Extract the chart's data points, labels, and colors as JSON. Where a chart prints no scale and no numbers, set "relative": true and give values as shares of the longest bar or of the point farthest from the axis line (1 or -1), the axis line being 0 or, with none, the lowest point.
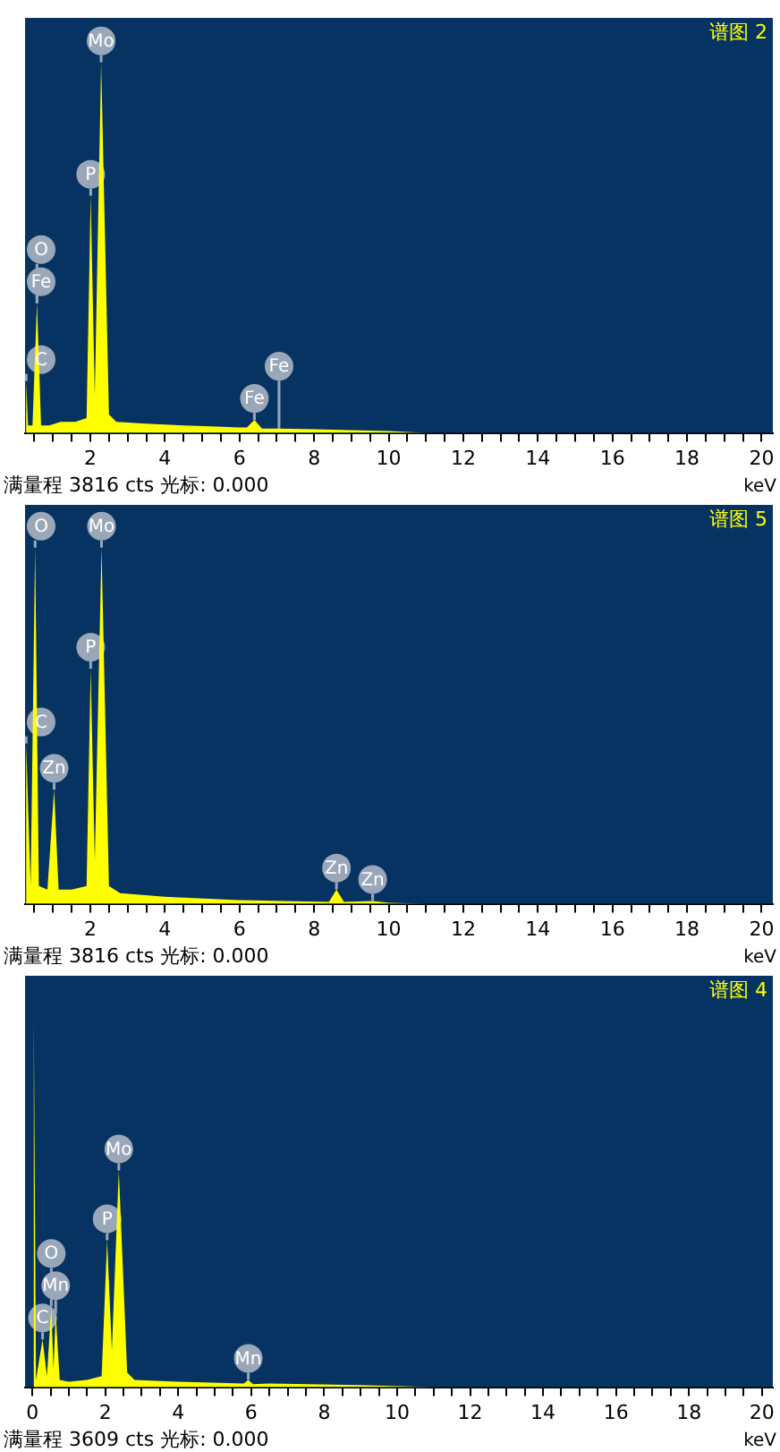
{
  "chart_data": [
    {
      "type": "area",
      "title": "谱图 2",
      "xlabel": "keV",
      "relative": true,
      "xlim": [
        0.25,
        20.3
      ],
      "xticks": [
        {
          "value": 0.5,
          "label": null
        },
        {
          "value": 1,
          "label": null
        },
        {
          "value": 1.5,
          "label": null
        },
        2,
        {
          "value": 2.5,
          "label": null
        },
        {
          "value": 3,
          "label": null
        },
        {
          "value": 3.5,
          "label": null
        },
        4,
        {
          "value": 4.5,
          "label": null
        },
        {
          "value": 5,
          "label": null
        },
        {
          "value": 5.5,
          "label": null
        },
        6,
        {
          "value": 6.5,
          "label": null
        },
        {
          "value": 7,
          "label": null
        },
        {
          "value": 7.5,
          "label": null
        },
        8,
        {
          "value": 8.5,
          "label": null
        },
        {
          "value": 9,
          "label": null
        },
        {
          "value": 9.5,
          "label": null
        },
        10,
        {
          "value": 10.5,
          "label": null
        },
        {
          "value": 11,
          "label": null
        },
        {
          "value": 11.5,
          "label": null
        },
        12,
        {
          "value": 12.5,
          "label": null
        },
        {
          "value": 13,
          "label": null
        },
        {
          "value": 13.5,
          "label": null
        },
        14,
        {
          "value": 14.5,
          "label": null
        },
        {
          "value": 15,
          "label": null
        },
        {
          "value": 15.5,
          "label": null
        },
        16,
        {
          "value": 16.5,
          "label": null
        },
        {
          "value": 17,
          "label": null
        },
        {
          "value": 17.5,
          "label": null
        },
        18,
        {
          "value": 18.5,
          "label": null
        },
        {
          "value": 19,
          "label": null
        },
        {
          "value": 19.5,
          "label": null
        },
        20
      ],
      "series": [
        {
          "color": "#ffff00",
          "x": [
            0.25,
            0.28,
            0.33,
            0.45,
            0.57,
            0.68,
            0.9,
            1.2,
            1.6,
            1.9,
            2.01,
            2.12,
            2.29,
            2.5,
            2.7,
            3.5,
            4.5,
            6.0,
            6.2,
            6.4,
            6.6,
            7.06,
            8,
            10,
            11,
            20.3
          ],
          "values": [
            0,
            0.14,
            0.02,
            0.02,
            0.35,
            0.02,
            0.02,
            0.03,
            0.03,
            0.04,
            0.64,
            0.1,
            1,
            0.05,
            0.03,
            0.025,
            0.02,
            0.015,
            0.015,
            0.035,
            0.012,
            0.012,
            0.01,
            0.005,
            0,
            0
          ]
        }
      ],
      "annotations": [
        "满量程 3816 cts 光标: 0.000",
        {
          "text": "C",
          "x": 0.28,
          "y": 0.14
        },
        {
          "text": "Fe",
          "x": 0.57,
          "y": 0.35
        },
        {
          "text": "O",
          "x": 0.57,
          "y": 0.35
        },
        {
          "text": "P",
          "x": 2.01,
          "y": 0.64
        },
        {
          "text": "Mo",
          "x": 2.29,
          "y": 1
        },
        {
          "text": "Fe",
          "x": 6.4,
          "y": 0.035
        },
        {
          "text": "Fe",
          "x": 7.06,
          "y": 0.012
        }
      ]
    },
    {
      "type": "area",
      "title": "谱图 5",
      "xlabel": "keV",
      "relative": true,
      "xlim": [
        0.25,
        20.3
      ],
      "xticks": [
        {
          "value": 0.5,
          "label": null
        },
        {
          "value": 1,
          "label": null
        },
        {
          "value": 1.5,
          "label": null
        },
        2,
        {
          "value": 2.5,
          "label": null
        },
        {
          "value": 3,
          "label": null
        },
        {
          "value": 3.5,
          "label": null
        },
        4,
        {
          "value": 4.5,
          "label": null
        },
        {
          "value": 5,
          "label": null
        },
        {
          "value": 5.5,
          "label": null
        },
        6,
        {
          "value": 6.5,
          "label": null
        },
        {
          "value": 7,
          "label": null
        },
        {
          "value": 7.5,
          "label": null
        },
        8,
        {
          "value": 8.5,
          "label": null
        },
        {
          "value": 9,
          "label": null
        },
        {
          "value": 9.5,
          "label": null
        },
        10,
        {
          "value": 10.5,
          "label": null
        },
        {
          "value": 11,
          "label": null
        },
        {
          "value": 11.5,
          "label": null
        },
        12,
        {
          "value": 12.5,
          "label": null
        },
        {
          "value": 13,
          "label": null
        },
        {
          "value": 13.5,
          "label": null
        },
        14,
        {
          "value": 14.5,
          "label": null
        },
        {
          "value": 15,
          "label": null
        },
        {
          "value": 15.5,
          "label": null
        },
        16,
        {
          "value": 16.5,
          "label": null
        },
        {
          "value": 17,
          "label": null
        },
        {
          "value": 17.5,
          "label": null
        },
        18,
        {
          "value": 18.5,
          "label": null
        },
        {
          "value": 19,
          "label": null
        },
        {
          "value": 19.5,
          "label": null
        },
        20
      ],
      "series": [
        {
          "color": "#ffff00",
          "x": [
            0.25,
            0.28,
            0.4,
            0.52,
            0.62,
            0.85,
            1.03,
            1.15,
            1.5,
            1.9,
            2.01,
            2.12,
            2.3,
            2.5,
            2.8,
            4,
            6,
            8.4,
            8.6,
            8.8,
            9.57,
            10,
            11,
            20.3
          ],
          "values": [
            0,
            0.45,
            0.05,
            1,
            0.05,
            0.04,
            0.32,
            0.04,
            0.04,
            0.05,
            0.66,
            0.12,
            1,
            0.05,
            0.03,
            0.02,
            0.01,
            0.005,
            0.04,
            0.005,
            0.008,
            0.003,
            0,
            0
          ]
        }
      ],
      "annotations": [
        "满量程 3816 cts 光标: 0.000",
        {
          "text": "C",
          "x": 0.28,
          "y": 0.45
        },
        {
          "text": "O",
          "x": 0.52,
          "y": 1
        },
        {
          "text": "Zn",
          "x": 1.03,
          "y": 0.32
        },
        {
          "text": "P",
          "x": 2.01,
          "y": 0.66
        },
        {
          "text": "Mo",
          "x": 2.3,
          "y": 1
        },
        {
          "text": "Zn",
          "x": 8.6,
          "y": 0.04
        },
        {
          "text": "Zn",
          "x": 9.57,
          "y": 0.008
        }
      ]
    },
    {
      "type": "area",
      "title": "谱图 4",
      "xlabel": "keV",
      "relative": true,
      "xlim": [
        -0.2,
        20.3
      ],
      "xticks": [
        0,
        {
          "value": 0.5,
          "label": null
        },
        {
          "value": 1,
          "label": null
        },
        {
          "value": 1.5,
          "label": null
        },
        2,
        {
          "value": 2.5,
          "label": null
        },
        {
          "value": 3,
          "label": null
        },
        {
          "value": 3.5,
          "label": null
        },
        4,
        {
          "value": 4.5,
          "label": null
        },
        {
          "value": 5,
          "label": null
        },
        {
          "value": 5.5,
          "label": null
        },
        6,
        {
          "value": 6.5,
          "label": null
        },
        {
          "value": 7,
          "label": null
        },
        {
          "value": 7.5,
          "label": null
        },
        8,
        {
          "value": 8.5,
          "label": null
        },
        {
          "value": 9,
          "label": null
        },
        {
          "value": 9.5,
          "label": null
        },
        10,
        {
          "value": 10.5,
          "label": null
        },
        {
          "value": 11,
          "label": null
        },
        {
          "value": 11.5,
          "label": null
        },
        12,
        {
          "value": 12.5,
          "label": null
        },
        {
          "value": 13,
          "label": null
        },
        {
          "value": 13.5,
          "label": null
        },
        14,
        {
          "value": 14.5,
          "label": null
        },
        {
          "value": 15,
          "label": null
        },
        {
          "value": 15.5,
          "label": null
        },
        16,
        {
          "value": 16.5,
          "label": null
        },
        {
          "value": 17,
          "label": null
        },
        {
          "value": 17.5,
          "label": null
        },
        18,
        {
          "value": 18.5,
          "label": null
        },
        {
          "value": 19,
          "label": null
        },
        {
          "value": 19.5,
          "label": null
        },
        20
      ],
      "series": [
        {
          "color": "#ffff00",
          "x": [
            -0.2,
            0,
            0.04,
            0.1,
            0.28,
            0.4,
            0.52,
            0.58,
            0.64,
            0.75,
            1.0,
            1.5,
            1.9,
            2.05,
            2.18,
            2.37,
            2.6,
            2.8,
            4,
            5.8,
            5.92,
            6.05,
            6.5,
            9,
            11,
            20.3
          ],
          "values": [
            0,
            0,
            1,
            0.02,
            0.13,
            0.03,
            0.22,
            0.05,
            0.2,
            0.02,
            0.015,
            0.02,
            0.03,
            0.4,
            0.1,
            0.59,
            0.04,
            0.02,
            0.015,
            0.01,
            0.02,
            0.008,
            0.01,
            0.006,
            0,
            0
          ]
        }
      ],
      "annotations": [
        "满量程 3609 cts 光标: 0.000",
        {
          "text": "C",
          "x": 0.28,
          "y": 0.13
        },
        {
          "text": "Mn",
          "x": 0.64,
          "y": 0.2
        },
        {
          "text": "O",
          "x": 0.52,
          "y": 0.22
        },
        {
          "text": "P",
          "x": 2.05,
          "y": 0.4
        },
        {
          "text": "Mo",
          "x": 2.37,
          "y": 0.59
        },
        {
          "text": "Mn",
          "x": 5.92,
          "y": 0.02
        }
      ]
    }
  ]
}
